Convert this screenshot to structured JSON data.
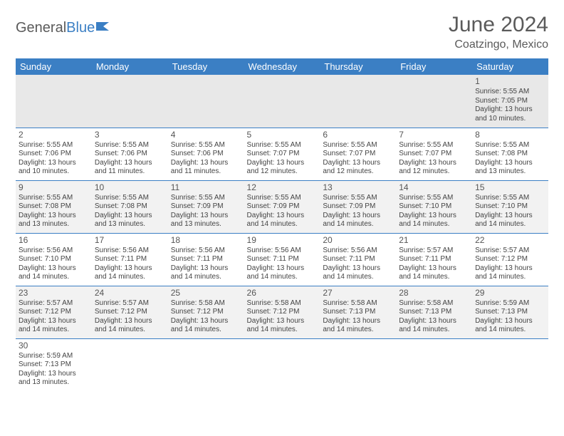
{
  "brand": {
    "part1": "General",
    "part2": "Blue"
  },
  "title": "June 2024",
  "location": "Coatzingo, Mexico",
  "colors": {
    "header_bg": "#3b7fc4",
    "header_text": "#ffffff",
    "cell_border": "#3b7fc4",
    "text": "#444444",
    "title_text": "#5a5a5a",
    "alt_row_bg": "#f2f2f2",
    "page_bg": "#ffffff"
  },
  "typography": {
    "title_fontsize": 30,
    "location_fontsize": 16,
    "dayhdr_fontsize": 13,
    "cell_fontsize": 10
  },
  "day_headers": [
    "Sunday",
    "Monday",
    "Tuesday",
    "Wednesday",
    "Thursday",
    "Friday",
    "Saturday"
  ],
  "labels": {
    "sunrise": "Sunrise:",
    "sunset": "Sunset:",
    "daylight": "Daylight:"
  },
  "weeks": [
    [
      null,
      null,
      null,
      null,
      null,
      null,
      {
        "n": "1",
        "sr": "5:55 AM",
        "ss": "7:05 PM",
        "dl1": "13 hours",
        "dl2": "and 10 minutes."
      }
    ],
    [
      {
        "n": "2",
        "sr": "5:55 AM",
        "ss": "7:06 PM",
        "dl1": "13 hours",
        "dl2": "and 10 minutes."
      },
      {
        "n": "3",
        "sr": "5:55 AM",
        "ss": "7:06 PM",
        "dl1": "13 hours",
        "dl2": "and 11 minutes."
      },
      {
        "n": "4",
        "sr": "5:55 AM",
        "ss": "7:06 PM",
        "dl1": "13 hours",
        "dl2": "and 11 minutes."
      },
      {
        "n": "5",
        "sr": "5:55 AM",
        "ss": "7:07 PM",
        "dl1": "13 hours",
        "dl2": "and 12 minutes."
      },
      {
        "n": "6",
        "sr": "5:55 AM",
        "ss": "7:07 PM",
        "dl1": "13 hours",
        "dl2": "and 12 minutes."
      },
      {
        "n": "7",
        "sr": "5:55 AM",
        "ss": "7:07 PM",
        "dl1": "13 hours",
        "dl2": "and 12 minutes."
      },
      {
        "n": "8",
        "sr": "5:55 AM",
        "ss": "7:08 PM",
        "dl1": "13 hours",
        "dl2": "and 13 minutes."
      }
    ],
    [
      {
        "n": "9",
        "sr": "5:55 AM",
        "ss": "7:08 PM",
        "dl1": "13 hours",
        "dl2": "and 13 minutes."
      },
      {
        "n": "10",
        "sr": "5:55 AM",
        "ss": "7:08 PM",
        "dl1": "13 hours",
        "dl2": "and 13 minutes."
      },
      {
        "n": "11",
        "sr": "5:55 AM",
        "ss": "7:09 PM",
        "dl1": "13 hours",
        "dl2": "and 13 minutes."
      },
      {
        "n": "12",
        "sr": "5:55 AM",
        "ss": "7:09 PM",
        "dl1": "13 hours",
        "dl2": "and 14 minutes."
      },
      {
        "n": "13",
        "sr": "5:55 AM",
        "ss": "7:09 PM",
        "dl1": "13 hours",
        "dl2": "and 14 minutes."
      },
      {
        "n": "14",
        "sr": "5:55 AM",
        "ss": "7:10 PM",
        "dl1": "13 hours",
        "dl2": "and 14 minutes."
      },
      {
        "n": "15",
        "sr": "5:55 AM",
        "ss": "7:10 PM",
        "dl1": "13 hours",
        "dl2": "and 14 minutes."
      }
    ],
    [
      {
        "n": "16",
        "sr": "5:56 AM",
        "ss": "7:10 PM",
        "dl1": "13 hours",
        "dl2": "and 14 minutes."
      },
      {
        "n": "17",
        "sr": "5:56 AM",
        "ss": "7:11 PM",
        "dl1": "13 hours",
        "dl2": "and 14 minutes."
      },
      {
        "n": "18",
        "sr": "5:56 AM",
        "ss": "7:11 PM",
        "dl1": "13 hours",
        "dl2": "and 14 minutes."
      },
      {
        "n": "19",
        "sr": "5:56 AM",
        "ss": "7:11 PM",
        "dl1": "13 hours",
        "dl2": "and 14 minutes."
      },
      {
        "n": "20",
        "sr": "5:56 AM",
        "ss": "7:11 PM",
        "dl1": "13 hours",
        "dl2": "and 14 minutes."
      },
      {
        "n": "21",
        "sr": "5:57 AM",
        "ss": "7:11 PM",
        "dl1": "13 hours",
        "dl2": "and 14 minutes."
      },
      {
        "n": "22",
        "sr": "5:57 AM",
        "ss": "7:12 PM",
        "dl1": "13 hours",
        "dl2": "and 14 minutes."
      }
    ],
    [
      {
        "n": "23",
        "sr": "5:57 AM",
        "ss": "7:12 PM",
        "dl1": "13 hours",
        "dl2": "and 14 minutes."
      },
      {
        "n": "24",
        "sr": "5:57 AM",
        "ss": "7:12 PM",
        "dl1": "13 hours",
        "dl2": "and 14 minutes."
      },
      {
        "n": "25",
        "sr": "5:58 AM",
        "ss": "7:12 PM",
        "dl1": "13 hours",
        "dl2": "and 14 minutes."
      },
      {
        "n": "26",
        "sr": "5:58 AM",
        "ss": "7:12 PM",
        "dl1": "13 hours",
        "dl2": "and 14 minutes."
      },
      {
        "n": "27",
        "sr": "5:58 AM",
        "ss": "7:13 PM",
        "dl1": "13 hours",
        "dl2": "and 14 minutes."
      },
      {
        "n": "28",
        "sr": "5:58 AM",
        "ss": "7:13 PM",
        "dl1": "13 hours",
        "dl2": "and 14 minutes."
      },
      {
        "n": "29",
        "sr": "5:59 AM",
        "ss": "7:13 PM",
        "dl1": "13 hours",
        "dl2": "and 14 minutes."
      }
    ],
    [
      {
        "n": "30",
        "sr": "5:59 AM",
        "ss": "7:13 PM",
        "dl1": "13 hours",
        "dl2": "and 13 minutes."
      },
      null,
      null,
      null,
      null,
      null,
      null
    ]
  ]
}
